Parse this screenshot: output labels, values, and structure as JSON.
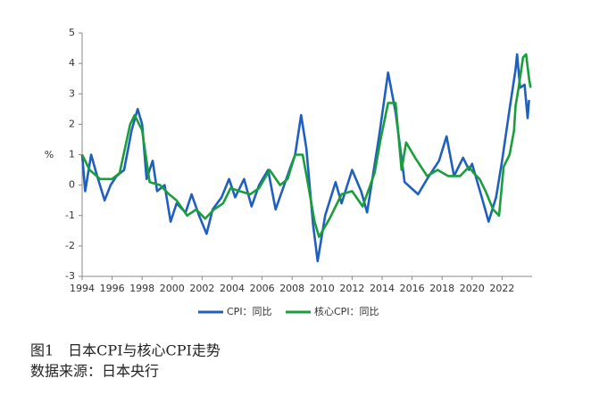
{
  "chart_data": {
    "type": "line",
    "y_label": "%",
    "xlim": [
      1994,
      2024
    ],
    "xticks": [
      1994,
      1996,
      1998,
      2000,
      2002,
      2004,
      2006,
      2008,
      2010,
      2012,
      2014,
      2016,
      2018,
      2020,
      2022
    ],
    "ylim": [
      -3,
      5
    ],
    "yticks": [
      -3,
      -2,
      -1,
      0,
      1,
      2,
      3,
      4,
      5
    ],
    "series": [
      {
        "name": "CPI：同比",
        "color": "#1f5fbf",
        "x": [
          1994.0,
          1994.2,
          1994.6,
          1995.0,
          1995.5,
          1995.9,
          1996.3,
          1996.8,
          1997.3,
          1997.7,
          1998.0,
          1998.3,
          1998.7,
          1999.0,
          1999.5,
          1999.9,
          2000.3,
          2000.9,
          2001.3,
          2001.8,
          2002.3,
          2002.7,
          2003.3,
          2003.8,
          2004.2,
          2004.8,
          2005.3,
          2005.8,
          2006.4,
          2006.9,
          2007.4,
          2007.9,
          2008.2,
          2008.6,
          2008.95,
          2009.4,
          2009.7,
          2010.2,
          2010.9,
          2011.3,
          2012.0,
          2012.6,
          2013.0,
          2013.8,
          2014.4,
          2014.9,
          2015.5,
          2016.4,
          2017.0,
          2017.8,
          2018.3,
          2018.8,
          2019.4,
          2019.8,
          2020.0,
          2020.7,
          2021.1,
          2021.6,
          2022.0,
          2022.5,
          2022.9,
          2023.0,
          2023.2,
          2023.5,
          2023.7,
          2023.8
        ],
        "values": [
          1.0,
          -0.2,
          1.0,
          0.3,
          -0.5,
          0.0,
          0.3,
          0.5,
          1.8,
          2.5,
          2.0,
          0.2,
          0.8,
          -0.2,
          0.0,
          -1.2,
          -0.6,
          -0.9,
          -0.3,
          -1.0,
          -1.6,
          -0.8,
          -0.4,
          0.2,
          -0.4,
          0.2,
          -0.7,
          0.0,
          0.5,
          -0.8,
          -0.1,
          0.6,
          1.0,
          2.3,
          1.2,
          -1.3,
          -2.5,
          -1.0,
          0.1,
          -0.6,
          0.5,
          -0.2,
          -0.9,
          1.6,
          3.7,
          2.4,
          0.1,
          -0.3,
          0.2,
          0.8,
          1.6,
          0.3,
          0.9,
          0.5,
          0.7,
          -0.5,
          -1.2,
          -0.4,
          0.8,
          2.5,
          3.8,
          4.3,
          3.2,
          3.3,
          2.2,
          2.8
        ]
      },
      {
        "name": "核心CPI：同比",
        "color": "#1a9e3c",
        "x": [
          1994.0,
          1994.5,
          1995.2,
          1996.0,
          1996.5,
          1997.2,
          1997.5,
          1998.0,
          1998.5,
          1999.2,
          1999.8,
          2000.3,
          2001.0,
          2001.6,
          2002.2,
          2002.8,
          2003.4,
          2003.9,
          2004.5,
          2005.2,
          2005.8,
          2006.5,
          2007.2,
          2007.7,
          2008.2,
          2008.7,
          2009.0,
          2009.5,
          2009.8,
          2010.5,
          2011.3,
          2012.0,
          2012.7,
          2013.5,
          2013.9,
          2014.4,
          2014.9,
          2015.3,
          2015.6,
          2016.2,
          2017.0,
          2017.7,
          2018.4,
          2019.2,
          2019.8,
          2020.1,
          2020.5,
          2020.9,
          2021.4,
          2021.8,
          2022.1,
          2022.5,
          2022.8,
          2022.9,
          2023.1,
          2023.4,
          2023.6,
          2023.8,
          2023.9
        ],
        "values": [
          1.0,
          0.5,
          0.2,
          0.2,
          0.4,
          2.0,
          2.3,
          1.8,
          0.1,
          0.0,
          -0.3,
          -0.5,
          -1.0,
          -0.8,
          -1.1,
          -0.8,
          -0.6,
          -0.1,
          -0.2,
          -0.3,
          -0.1,
          0.5,
          0.0,
          0.2,
          1.0,
          1.0,
          0.2,
          -1.2,
          -1.7,
          -1.1,
          -0.3,
          -0.2,
          -0.7,
          0.4,
          1.5,
          2.7,
          2.7,
          0.5,
          1.4,
          0.9,
          0.3,
          0.5,
          0.3,
          0.3,
          0.6,
          0.4,
          0.2,
          -0.2,
          -0.8,
          -1.0,
          0.6,
          1.0,
          1.8,
          2.6,
          3.2,
          4.2,
          4.3,
          3.5,
          3.2
        ]
      }
    ]
  },
  "caption": {
    "title": "图1　日本CPI与核心CPI走势",
    "source": "数据来源：日本央行"
  }
}
